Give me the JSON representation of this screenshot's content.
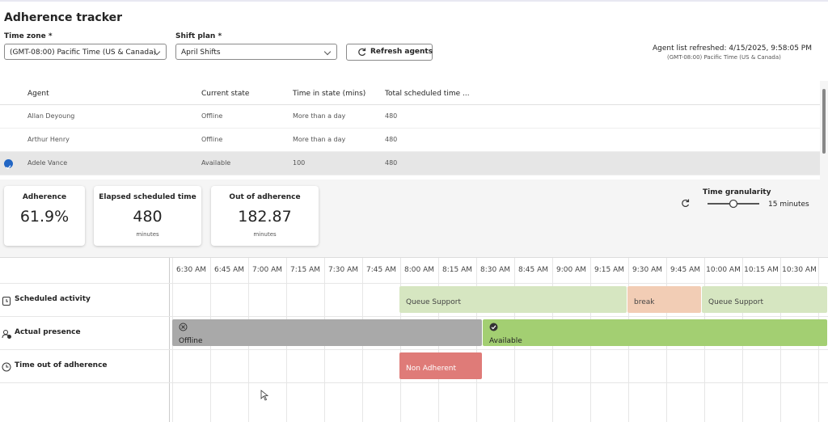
{
  "header": {
    "title": "Adherence tracker"
  },
  "filters": {
    "time_zone": {
      "label": "Time zone *",
      "value": "(GMT-08:00) Pacific Time (US & Canada)"
    },
    "shift_plan": {
      "label": "Shift plan *",
      "value": "April Shifts"
    },
    "refresh_button": "Refresh agents"
  },
  "refresh_info": {
    "text": "Agent list refreshed: 4/15/2025, 9:58:05 PM",
    "timezone": "(GMT-08:00) Pacific Time (US & Canada)"
  },
  "table": {
    "columns": [
      "Agent",
      "Current state",
      "Time in state (mins)",
      "Total scheduled time ..."
    ],
    "rows": [
      [
        "Allan Deyoung",
        "Offline",
        "More than a day",
        "480"
      ],
      [
        "Arthur Henry",
        "Offline",
        "More than a day",
        "480"
      ],
      [
        "Adele Vance",
        "Available",
        "100",
        "480"
      ]
    ],
    "selected_row": 2
  },
  "metrics": [
    {
      "label": "Adherence",
      "value": "61.9%"
    },
    {
      "label": "Elapsed scheduled time",
      "value": "480",
      "unit": "minutes"
    },
    {
      "label": "Out of adherence",
      "value": "182.87",
      "unit": "minutes"
    }
  ],
  "time_granularity": {
    "label": "Time granularity",
    "value": "15 minutes"
  },
  "timeline": {
    "times": [
      "6:30 AM",
      "6:45 AM",
      "7:00 AM",
      "7:15 AM",
      "7:30 AM",
      "7:45 AM",
      "8:00 AM",
      "8:15 AM",
      "8:30 AM",
      "8:45 AM",
      "9:00 AM",
      "9:15 AM",
      "9:30 AM",
      "9:45 AM",
      "10:00 AM",
      "10:15 AM",
      "10:30 AM"
    ],
    "rows": [
      {
        "label": "Scheduled activity",
        "blocks": [
          {
            "label": "Queue Support"
          },
          {
            "label": "break"
          },
          {
            "label": "Queue Support"
          }
        ]
      },
      {
        "label": "Actual presence",
        "blocks": [
          {
            "label": "Offline"
          },
          {
            "label": "Available"
          }
        ]
      },
      {
        "label": "Time out of adherence",
        "blocks": [
          {
            "label": "Non Adherent"
          }
        ]
      }
    ]
  }
}
